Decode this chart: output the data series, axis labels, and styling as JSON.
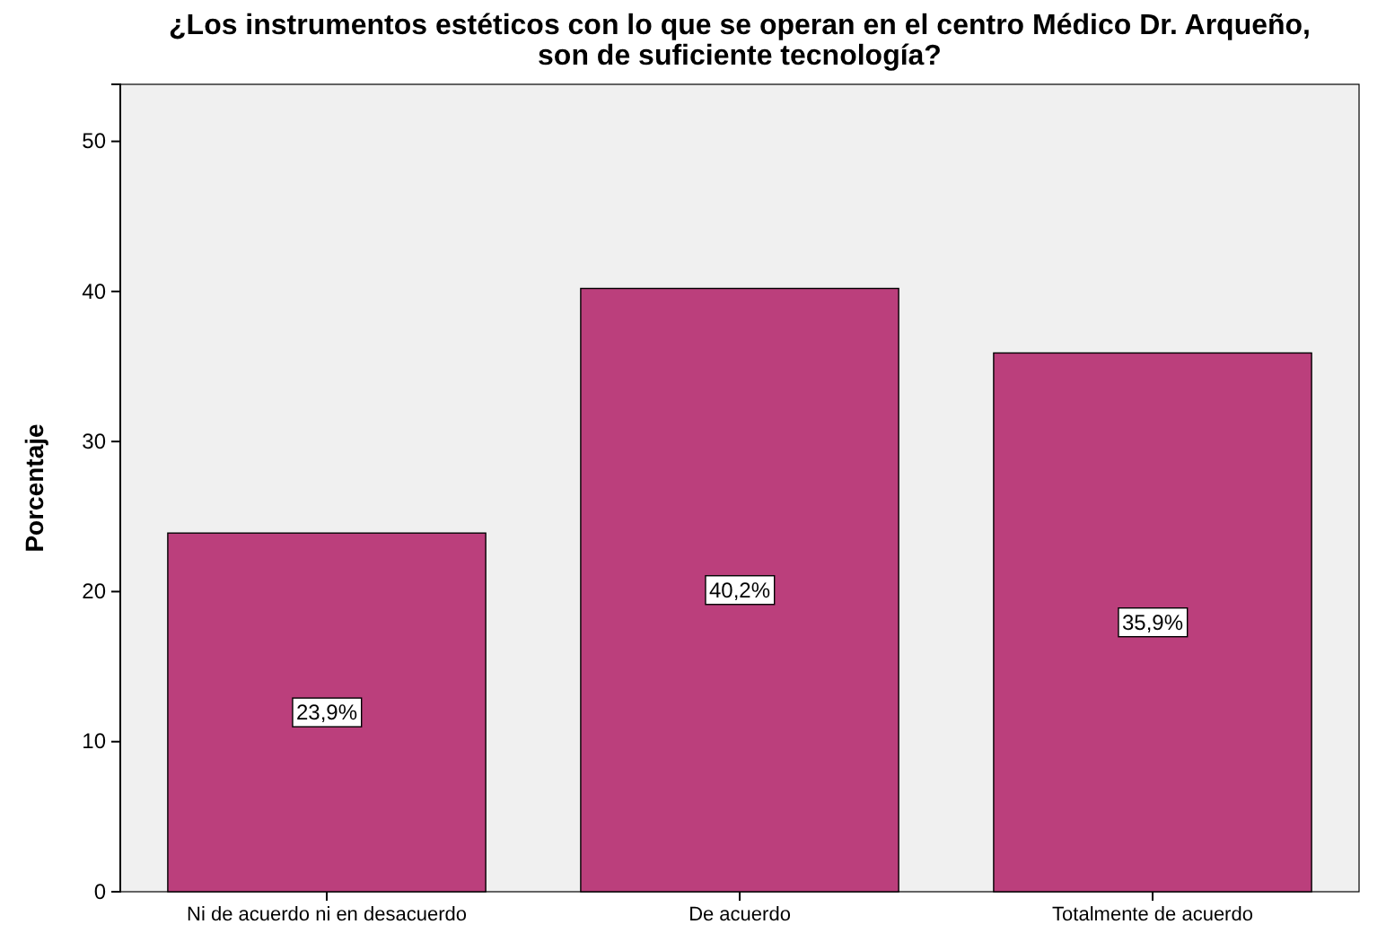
{
  "chart_data": {
    "type": "bar",
    "title": "¿Los instrumentos estéticos con lo que se operan en el centro Médico Dr. Arqueño, son de suficiente tecnología?",
    "ylabel": "Porcentaje",
    "categories": [
      "Ni de acuerdo ni en desacuerdo",
      "De acuerdo",
      "Totalmente de acuerdo"
    ],
    "values": [
      23.9,
      40.2,
      35.9
    ],
    "value_labels": [
      "23,9%",
      "40,2%",
      "35,9%"
    ],
    "color": "#bb3f7c",
    "ylim": [
      0,
      53.8
    ],
    "yticks": [
      0,
      10,
      20,
      30,
      40,
      50
    ]
  }
}
